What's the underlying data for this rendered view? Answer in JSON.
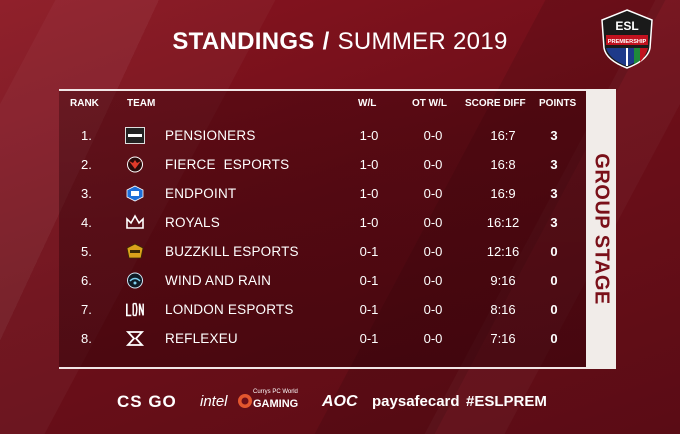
{
  "header": {
    "title_bold": "STANDINGS",
    "separator": "/",
    "title_light": "SUMMER 2019"
  },
  "logo": {
    "brand": "ESL",
    "subtitle": "PREMIERSHIP"
  },
  "table": {
    "columns": {
      "rank": "RANK",
      "team": "TEAM",
      "wl": "W/L",
      "ot_wl": "OT W/L",
      "score_diff": "SCORE DIFF",
      "points": "POINTS"
    },
    "rows": [
      {
        "rank": "1.",
        "team": "PENSIONERS",
        "wl": "1-0",
        "ot_wl": "0-0",
        "score_diff": "16:7",
        "points": "3",
        "logo_icon": "pensioners-logo"
      },
      {
        "rank": "2.",
        "team": "FIERCE  ESPORTS",
        "wl": "1-0",
        "ot_wl": "0-0",
        "score_diff": "16:8",
        "points": "3",
        "logo_icon": "fierce-logo"
      },
      {
        "rank": "3.",
        "team": "ENDPOINT",
        "wl": "1-0",
        "ot_wl": "0-0",
        "score_diff": "16:9",
        "points": "3",
        "logo_icon": "endpoint-logo"
      },
      {
        "rank": "4.",
        "team": "ROYALS",
        "wl": "1-0",
        "ot_wl": "0-0",
        "score_diff": "16:12",
        "points": "3",
        "logo_icon": "royals-crown-logo"
      },
      {
        "rank": "5.",
        "team": "BUZZKILL ESPORTS",
        "wl": "0-1",
        "ot_wl": "0-0",
        "score_diff": "12:16",
        "points": "0",
        "logo_icon": "buzzkill-logo"
      },
      {
        "rank": "6.",
        "team": "WIND AND RAIN",
        "wl": "0-1",
        "ot_wl": "0-0",
        "score_diff": "9:16",
        "points": "0",
        "logo_icon": "windandrain-logo"
      },
      {
        "rank": "7.",
        "team": "LONDON ESPORTS",
        "wl": "0-1",
        "ot_wl": "0-0",
        "score_diff": "8:16",
        "points": "0",
        "logo_icon": "london-esports-logo"
      },
      {
        "rank": "8.",
        "team": "REFLEXEU",
        "wl": "0-1",
        "ot_wl": "0-0",
        "score_diff": "7:16",
        "points": "0",
        "logo_icon": "reflexeu-logo"
      }
    ]
  },
  "side_label": "GROUP STAGE",
  "sponsors": {
    "csgo": "CS GO",
    "intel": "intel",
    "gaming_top": "Currys PC World",
    "gaming": "GAMING",
    "aoc": "AOC",
    "paysafe": "paysafecard",
    "hashtag": "#ESLPREM"
  },
  "colors": {
    "background": "#6e0f19",
    "panel_border": "#f1e6e6",
    "side_bg": "#f1ece9",
    "side_text": "#7a1019"
  }
}
